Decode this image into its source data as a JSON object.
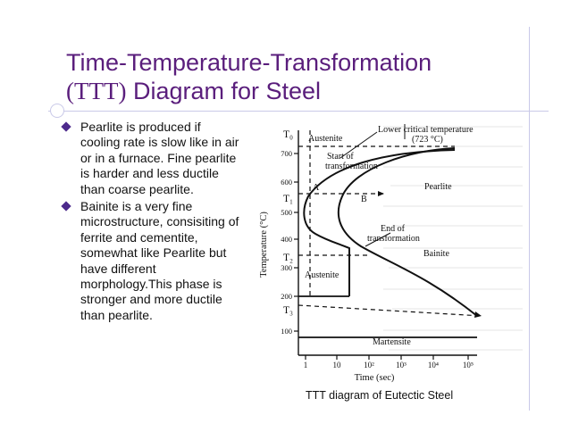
{
  "slide": {
    "title_line1": "Time-Temperature-Transformation",
    "title_ttt": "(TTT)",
    "title_rest": " Diagram for Steel",
    "bullets": [
      "Pearlite is produced if cooling rate is slow like in air or in a furnace. Fine pearlite is harder and less ductile than coarse pearlite.",
      "Bainite is a very fine microstructure, consisiting of ferrite and cementite, somewhat like Pearlite but have different morphology.This phase is stronger and more ductile than pearlite."
    ],
    "caption": "TTT diagram of Eutectic Steel"
  },
  "diagram": {
    "y_axis_label": "Temperature (°C)",
    "x_axis_label": "Time (sec)",
    "y_ticks": [
      "700",
      "600",
      "500",
      "400",
      "300",
      "200",
      "100"
    ],
    "x_ticks": [
      "1",
      "10",
      "10²",
      "10³",
      "10⁴",
      "10⁵"
    ],
    "level_labels": [
      "T₀",
      "T₁",
      "T₂",
      "T₃"
    ],
    "region_labels": {
      "austenite_top": "Austenite",
      "austenite_low": "Austenite",
      "pearlite": "Pearlite",
      "bainite": "Bainite",
      "martensite": "Martensite",
      "lower_critical_1": "Lower critical temperature",
      "lower_critical_2": "(723 °C)",
      "start_1": "Start of",
      "start_2": "transformation",
      "end_1": "End of",
      "end_2": "transformation",
      "point_a": "A",
      "point_b": "B"
    }
  }
}
